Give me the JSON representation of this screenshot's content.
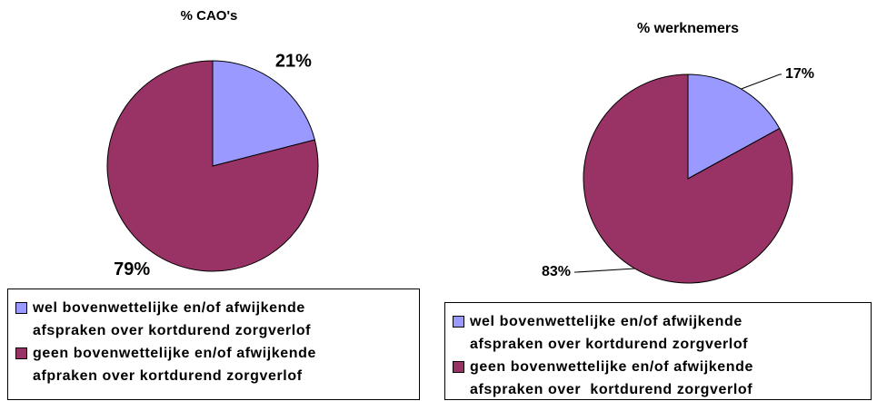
{
  "chart_data": [
    {
      "type": "pie",
      "title": "% CAO's",
      "categories": [
        "wel bovenwettelijke en/of afwijkende afspraken over kortdurend zorgverlof",
        "geen bovenwettelijke en/of afwijkende afpraken over kortdurend zorgverlof"
      ],
      "values": [
        21,
        79
      ],
      "value_labels": [
        "21%",
        "79%"
      ],
      "colors": [
        "#9999ff",
        "#993366"
      ]
    },
    {
      "type": "pie",
      "title": "% werknemers",
      "categories": [
        "wel bovenwettelijke en/of afwijkende afspraken over kortdurend zorgverlof",
        "geen bovenwettelijke en/of afwijkende afspraken over  kortdurend zorgverlof"
      ],
      "values": [
        17,
        83
      ],
      "value_labels": [
        "17%",
        "83%"
      ],
      "colors": [
        "#9999ff",
        "#993366"
      ]
    }
  ]
}
